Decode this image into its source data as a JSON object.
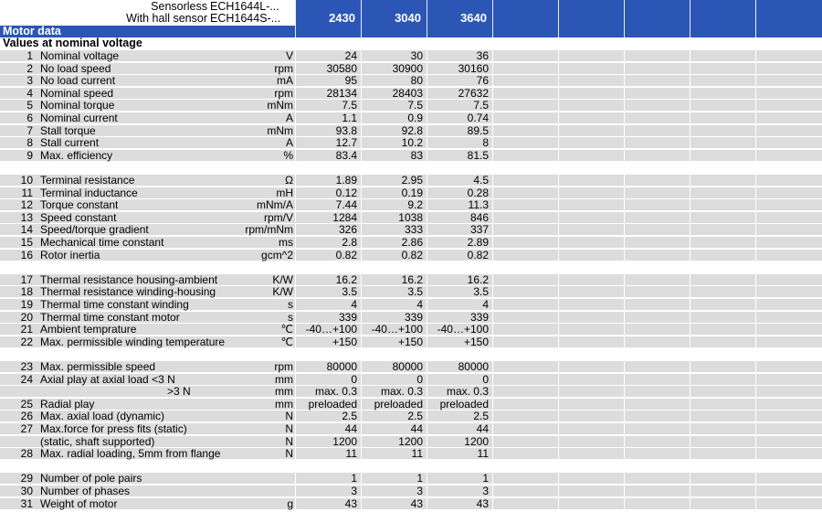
{
  "header": {
    "sensorless_label": "Sensorless",
    "sensorless_value": "ECH1644L-...",
    "hall_label": "With hall sensor",
    "hall_value": "ECH1644S-...",
    "models": [
      "2430",
      "3040",
      "3640"
    ]
  },
  "motor_data_title": "Motor data",
  "section_title": "Values at nominal voltage",
  "rows": [
    {
      "n": "1",
      "label": "Nominal voltage",
      "unit": "V",
      "v": [
        "24",
        "30",
        "36"
      ]
    },
    {
      "n": "2",
      "label": "No load speed",
      "unit": "rpm",
      "v": [
        "30580",
        "30900",
        "30160"
      ]
    },
    {
      "n": "3",
      "label": "No load current",
      "unit": "mA",
      "v": [
        "95",
        "80",
        "76"
      ]
    },
    {
      "n": "4",
      "label": "Nominal speed",
      "unit": "rpm",
      "v": [
        "28134",
        "28403",
        "27632"
      ]
    },
    {
      "n": "5",
      "label": "Nominal torque",
      "unit": "mNm",
      "v": [
        "7.5",
        "7.5",
        "7.5"
      ]
    },
    {
      "n": "6",
      "label": "Nominal current",
      "unit": "A",
      "v": [
        "1.1",
        "0.9",
        "0.74"
      ]
    },
    {
      "n": "7",
      "label": "Stall torque",
      "unit": "mNm",
      "v": [
        "93.8",
        "92.8",
        "89.5"
      ]
    },
    {
      "n": "8",
      "label": "Stall current",
      "unit": "A",
      "v": [
        "12.7",
        "10.2",
        "8"
      ]
    },
    {
      "n": "9",
      "label": "Max. efficiency",
      "unit": "%",
      "v": [
        "83.4",
        "83",
        "81.5"
      ]
    },
    {
      "blank": true
    },
    {
      "n": "10",
      "label": "Terminal resistance",
      "unit": "Ω",
      "v": [
        "1.89",
        "2.95",
        "4.5"
      ]
    },
    {
      "n": "11",
      "label": "Terminal inductance",
      "unit": "mH",
      "v": [
        "0.12",
        "0.19",
        "0.28"
      ]
    },
    {
      "n": "12",
      "label": "Torque constant",
      "unit": "mNm/A",
      "v": [
        "7.44",
        "9.2",
        "11.3"
      ]
    },
    {
      "n": "13",
      "label": "Speed constant",
      "unit": "rpm/V",
      "v": [
        "1284",
        "1038",
        "846"
      ]
    },
    {
      "n": "14",
      "label": "Speed/torque gradient",
      "unit": "rpm/mNm",
      "v": [
        "326",
        "333",
        "337"
      ]
    },
    {
      "n": "15",
      "label": "Mechanical time constant",
      "unit": "ms",
      "v": [
        "2.8",
        "2.86",
        "2.89"
      ]
    },
    {
      "n": "16",
      "label": "Rotor inertia",
      "unit": "gcm^2",
      "v": [
        "0.82",
        "0.82",
        "0.82"
      ]
    },
    {
      "blank": true
    },
    {
      "n": "17",
      "label": "Thermal resistance housing-ambient",
      "unit": "K/W",
      "v": [
        "16.2",
        "16.2",
        "16.2"
      ]
    },
    {
      "n": "18",
      "label": "Thermal resistance winding-housing",
      "unit": "K/W",
      "v": [
        "3.5",
        "3.5",
        "3.5"
      ]
    },
    {
      "n": "19",
      "label": "Thermal time constant winding",
      "unit": "s",
      "v": [
        "4",
        "4",
        "4"
      ]
    },
    {
      "n": "20",
      "label": "Thermal time constant motor",
      "unit": "s",
      "v": [
        "339",
        "339",
        "339"
      ]
    },
    {
      "n": "21",
      "label": "Ambient temprature",
      "unit": "℃",
      "v": [
        "-40…+100",
        "-40…+100",
        "-40…+100"
      ]
    },
    {
      "n": "22",
      "label": "Max. permissible winding temperature",
      "unit": "℃",
      "v": [
        "+150",
        "+150",
        "+150"
      ]
    },
    {
      "blank": true
    },
    {
      "n": "23",
      "label": "Max. permissible speed",
      "unit": "rpm",
      "v": [
        "80000",
        "80000",
        "80000"
      ]
    },
    {
      "n": "24",
      "label": "Axial play at axial load <3 N",
      "unit": "mm",
      "v": [
        "0",
        "0",
        "0"
      ]
    },
    {
      "n": "",
      "label": ">3 N",
      "unit": "mm",
      "indent": true,
      "v": [
        "max. 0.3",
        "max. 0.3",
        "max. 0.3"
      ]
    },
    {
      "n": "25",
      "label": "Radial play",
      "unit": "mm",
      "v": [
        "preloaded",
        "preloaded",
        "preloaded"
      ]
    },
    {
      "n": "26",
      "label": "Max. axial load (dynamic)",
      "unit": "N",
      "v": [
        "2.5",
        "2.5",
        "2.5"
      ]
    },
    {
      "n": "27",
      "label": "Max.force for press fits (static)",
      "unit": "N",
      "v": [
        "44",
        "44",
        "44"
      ]
    },
    {
      "n": "",
      "label": "(static, shaft supported)",
      "unit": "N",
      "v": [
        "1200",
        "1200",
        "1200"
      ]
    },
    {
      "n": "28",
      "label": "Max. radial loading, 5mm from flange",
      "unit": "N",
      "v": [
        "11",
        "11",
        "11"
      ]
    },
    {
      "blank": true
    },
    {
      "n": "29",
      "label": "Number of pole pairs",
      "unit": "",
      "v": [
        "1",
        "1",
        "1"
      ]
    },
    {
      "n": "30",
      "label": "Number of phases",
      "unit": "",
      "v": [
        "3",
        "3",
        "3"
      ]
    },
    {
      "n": "31",
      "label": "Weight of motor",
      "unit": "g",
      "v": [
        "43",
        "43",
        "43"
      ]
    }
  ]
}
